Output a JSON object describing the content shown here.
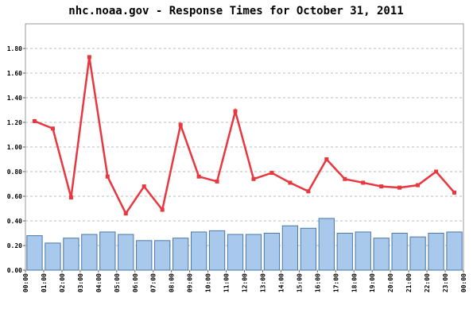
{
  "chart_data": {
    "type": "bar",
    "title": "nhc.noaa.gov - Response Times for October 31, 2011",
    "x": [
      0.5,
      1.5,
      2.5,
      3.5,
      4.5,
      5.5,
      6.5,
      7.5,
      8.5,
      9.5,
      10.5,
      11.5,
      12.5,
      13.5,
      14.5,
      15.5,
      16.5,
      17.5,
      18.5,
      19.5,
      20.5,
      21.5,
      22.5,
      23.5
    ],
    "xlim": [
      0,
      24
    ],
    "xticks": [
      {
        "value": 0,
        "label": "00:00"
      },
      {
        "value": 1,
        "label": "01:00"
      },
      {
        "value": 2,
        "label": "02:00"
      },
      {
        "value": 3,
        "label": "03:00"
      },
      {
        "value": 4,
        "label": "04:00"
      },
      {
        "value": 5,
        "label": "05:00"
      },
      {
        "value": 6,
        "label": "06:00"
      },
      {
        "value": 7,
        "label": "07:00"
      },
      {
        "value": 8,
        "label": "08:00"
      },
      {
        "value": 9,
        "label": "09:00"
      },
      {
        "value": 10,
        "label": "10:00"
      },
      {
        "value": 11,
        "label": "11:00"
      },
      {
        "value": 12,
        "label": "12:00"
      },
      {
        "value": 13,
        "label": "13:00"
      },
      {
        "value": 14,
        "label": "14:00"
      },
      {
        "value": 15,
        "label": "15:00"
      },
      {
        "value": 16,
        "label": "16:00"
      },
      {
        "value": 17,
        "label": "17:00"
      },
      {
        "value": 18,
        "label": "18:00"
      },
      {
        "value": 19,
        "label": "19:00"
      },
      {
        "value": 20,
        "label": "20:00"
      },
      {
        "value": 21,
        "label": "21:00"
      },
      {
        "value": 22,
        "label": "22:00"
      },
      {
        "value": 23,
        "label": "23:00"
      },
      {
        "value": 24,
        "label": "00:00"
      }
    ],
    "ylim": [
      0,
      2.0
    ],
    "yticks": [
      {
        "value": 0,
        "label": "0.00"
      },
      {
        "value": 0.2,
        "label": "0.20"
      },
      {
        "value": 0.4,
        "label": "0.40"
      },
      {
        "value": 0.6,
        "label": "0.60"
      },
      {
        "value": 0.8,
        "label": "0.80"
      },
      {
        "value": 1.0,
        "label": "1.00"
      },
      {
        "value": 1.2,
        "label": "1.20"
      },
      {
        "value": 1.4,
        "label": "1.40"
      },
      {
        "value": 1.6,
        "label": "1.60"
      },
      {
        "value": 1.8,
        "label": "1.80"
      }
    ],
    "grid": true,
    "series": [
      {
        "type": "line",
        "color": "#e8373e",
        "values": [
          1.21,
          1.15,
          0.59,
          1.73,
          0.76,
          0.46,
          0.68,
          0.49,
          1.18,
          0.76,
          0.72,
          1.29,
          0.74,
          0.79,
          0.71,
          0.64,
          0.9,
          0.74,
          0.71,
          0.68,
          0.67,
          0.69,
          0.8,
          0.63
        ]
      },
      {
        "type": "bar",
        "color": "#a8c8ec",
        "values": [
          0.28,
          0.22,
          0.26,
          0.29,
          0.31,
          0.29,
          0.24,
          0.24,
          0.26,
          0.31,
          0.32,
          0.29,
          0.29,
          0.3,
          0.36,
          0.34,
          0.42,
          0.3,
          0.31,
          0.26,
          0.3,
          0.27,
          0.3,
          0.31
        ]
      }
    ]
  }
}
